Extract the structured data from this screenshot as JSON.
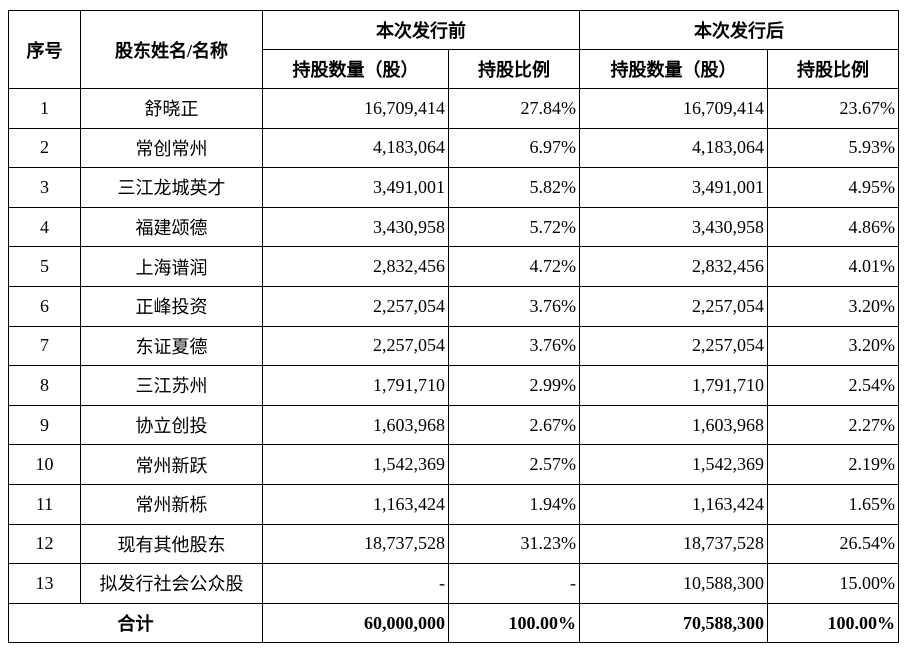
{
  "table": {
    "header": {
      "seq": "序号",
      "name": "股东姓名/名称",
      "before": "本次发行前",
      "after": "本次发行后",
      "sub": [
        "持股数量（股）",
        "持股比例",
        "持股数量（股）",
        "持股比例"
      ]
    },
    "rows": [
      [
        "1",
        "舒晓正",
        "16,709,414",
        "27.84%",
        "16,709,414",
        "23.67%"
      ],
      [
        "2",
        "常创常州",
        "4,183,064",
        "6.97%",
        "4,183,064",
        "5.93%"
      ],
      [
        "3",
        "三江龙城英才",
        "3,491,001",
        "5.82%",
        "3,491,001",
        "4.95%"
      ],
      [
        "4",
        "福建颂德",
        "3,430,958",
        "5.72%",
        "3,430,958",
        "4.86%"
      ],
      [
        "5",
        "上海谱润",
        "2,832,456",
        "4.72%",
        "2,832,456",
        "4.01%"
      ],
      [
        "6",
        "正峰投资",
        "2,257,054",
        "3.76%",
        "2,257,054",
        "3.20%"
      ],
      [
        "7",
        "东证夏德",
        "2,257,054",
        "3.76%",
        "2,257,054",
        "3.20%"
      ],
      [
        "8",
        "三江苏州",
        "1,791,710",
        "2.99%",
        "1,791,710",
        "2.54%"
      ],
      [
        "9",
        "协立创投",
        "1,603,968",
        "2.67%",
        "1,603,968",
        "2.27%"
      ],
      [
        "10",
        "常州新跃",
        "1,542,369",
        "2.57%",
        "1,542,369",
        "2.19%"
      ],
      [
        "11",
        "常州新栎",
        "1,163,424",
        "1.94%",
        "1,163,424",
        "1.65%"
      ],
      [
        "12",
        "现有其他股东",
        "18,737,528",
        "31.23%",
        "18,737,528",
        "26.54%"
      ],
      [
        "13",
        "拟发行社会公众股",
        "-",
        "-",
        "10,588,300",
        "15.00%"
      ]
    ],
    "total": {
      "label": "合计",
      "values": [
        "60,000,000",
        "100.00%",
        "70,588,300",
        "100.00%"
      ]
    }
  }
}
